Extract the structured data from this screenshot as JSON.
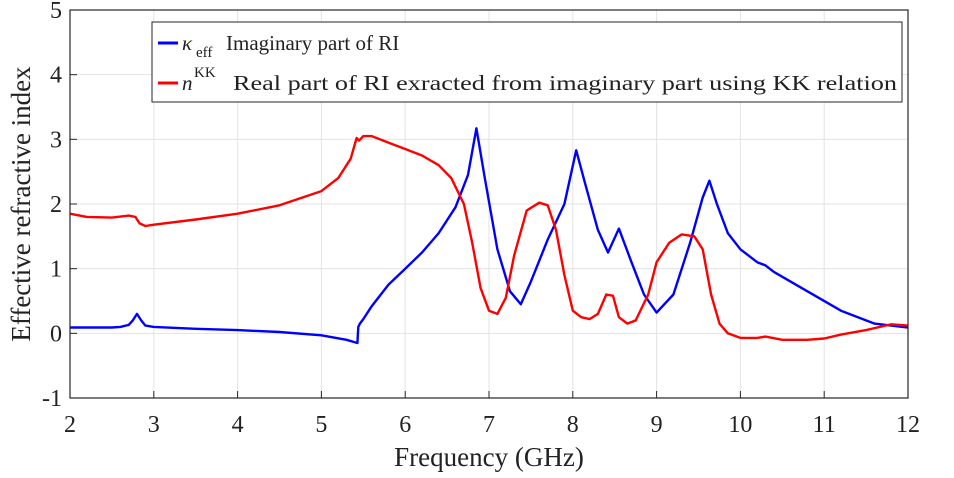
{
  "chart_data": {
    "type": "line",
    "xlabel": "Frequency (GHz)",
    "ylabel": "Effective refractive index",
    "xlim": [
      2,
      12
    ],
    "ylim": [
      -1,
      5
    ],
    "xticks": [
      "2",
      "3",
      "4",
      "5",
      "6",
      "7",
      "8",
      "9",
      "10",
      "11",
      "12"
    ],
    "yticks": [
      "-1",
      "0",
      "1",
      "2",
      "3",
      "4",
      "5"
    ],
    "grid": true,
    "legend_position": "top-right",
    "series": [
      {
        "name": "Imaginary part of RI",
        "symbol": "κ",
        "subscript": "eff",
        "color": "#0000ff",
        "x": [
          2.0,
          2.5,
          2.6,
          2.7,
          2.75,
          2.8,
          2.85,
          2.9,
          3.0,
          3.5,
          4.0,
          4.5,
          5.0,
          5.3,
          5.43,
          5.44,
          5.46,
          5.5,
          5.6,
          5.8,
          6.0,
          6.2,
          6.4,
          6.6,
          6.75,
          6.85,
          6.95,
          7.1,
          7.25,
          7.38,
          7.5,
          7.7,
          7.9,
          8.04,
          8.15,
          8.3,
          8.42,
          8.55,
          8.7,
          8.85,
          9.0,
          9.2,
          9.4,
          9.55,
          9.63,
          9.72,
          9.85,
          10.0,
          10.2,
          10.3,
          10.4,
          10.8,
          11.2,
          11.6,
          12.0
        ],
        "y": [
          0.09,
          0.09,
          0.1,
          0.13,
          0.2,
          0.3,
          0.2,
          0.12,
          0.1,
          0.07,
          0.05,
          0.02,
          -0.03,
          -0.1,
          -0.15,
          0.1,
          0.15,
          0.22,
          0.42,
          0.75,
          1.0,
          1.25,
          1.55,
          1.95,
          2.45,
          3.17,
          2.4,
          1.3,
          0.65,
          0.45,
          0.8,
          1.45,
          2.0,
          2.83,
          2.3,
          1.6,
          1.25,
          1.62,
          1.1,
          0.6,
          0.32,
          0.6,
          1.4,
          2.1,
          2.36,
          2.0,
          1.55,
          1.3,
          1.1,
          1.05,
          0.95,
          0.65,
          0.35,
          0.15,
          0.09
        ]
      },
      {
        "name": "Real part of RI exracted from imaginary part using KK relation",
        "symbol": "n",
        "superscript": "KK",
        "color": "#ff0000",
        "x": [
          2.0,
          2.2,
          2.5,
          2.7,
          2.78,
          2.83,
          2.9,
          3.0,
          3.5,
          4.0,
          4.5,
          5.0,
          5.2,
          5.35,
          5.42,
          5.45,
          5.5,
          5.6,
          5.8,
          6.0,
          6.2,
          6.4,
          6.55,
          6.7,
          6.8,
          6.9,
          7.0,
          7.1,
          7.2,
          7.3,
          7.45,
          7.6,
          7.7,
          7.8,
          7.9,
          8.0,
          8.1,
          8.2,
          8.3,
          8.4,
          8.48,
          8.55,
          8.65,
          8.75,
          8.9,
          9.0,
          9.15,
          9.3,
          9.45,
          9.55,
          9.65,
          9.75,
          9.85,
          10.0,
          10.2,
          10.3,
          10.5,
          10.8,
          11.0,
          11.2,
          11.5,
          11.8,
          12.0
        ],
        "y": [
          1.85,
          1.8,
          1.79,
          1.82,
          1.8,
          1.7,
          1.66,
          1.68,
          1.76,
          1.85,
          1.98,
          2.2,
          2.4,
          2.7,
          3.02,
          2.98,
          3.05,
          3.05,
          2.95,
          2.85,
          2.75,
          2.6,
          2.4,
          2.0,
          1.4,
          0.7,
          0.35,
          0.3,
          0.55,
          1.2,
          1.9,
          2.02,
          1.98,
          1.6,
          0.9,
          0.35,
          0.25,
          0.22,
          0.3,
          0.6,
          0.58,
          0.25,
          0.15,
          0.2,
          0.6,
          1.1,
          1.4,
          1.53,
          1.5,
          1.3,
          0.6,
          0.15,
          0.0,
          -0.07,
          -0.07,
          -0.05,
          -0.1,
          -0.1,
          -0.08,
          -0.02,
          0.05,
          0.14,
          0.12
        ]
      }
    ]
  }
}
